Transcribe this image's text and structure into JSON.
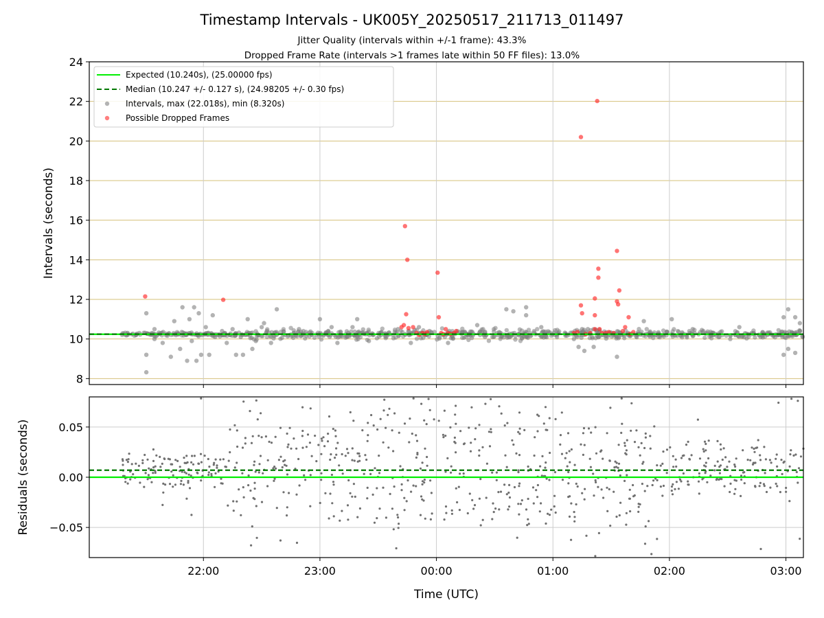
{
  "title": "Timestamp Intervals - UK005Y_20250517_211713_011497",
  "subtitle_line1": "Jitter Quality (intervals within +/-1 frame): 43.3%",
  "subtitle_line2": "Dropped Frame Rate (intervals >1 frames late within 50 FF files): 13.0%",
  "colors": {
    "expected": "#00ee00",
    "median": "#007700",
    "intervals": "#808080",
    "dropped": "#ff2a2a",
    "hgrid_top": "#d4c07a",
    "grid": "#cccccc"
  },
  "chart_data": [
    {
      "type": "scatter",
      "panel": "intervals",
      "ylabel": "Intervals (seconds)",
      "ylim": [
        7.7,
        24
      ],
      "yticks": [
        8,
        10,
        12,
        14,
        16,
        18,
        20,
        22,
        24
      ],
      "ytick_labels": [
        "8",
        "10",
        "12",
        "14",
        "16",
        "18",
        "20",
        "22",
        "24"
      ],
      "xlim_hours": [
        -2.98,
        3.15
      ],
      "xaxis_note": "hours relative to 00:00 UTC",
      "expected_value": 10.24,
      "median_value": 10.247,
      "legend": {
        "placement": "top-left",
        "entries": [
          {
            "key": "expected",
            "label": "Expected (10.240s), (25.00000 fps)"
          },
          {
            "key": "median",
            "label": "Median (10.247 +/- 0.127 s), (24.98205 +/- 0.30 fps)"
          },
          {
            "key": "intervals",
            "label": "Intervals, max (22.018s), min (8.320s)"
          },
          {
            "key": "dropped",
            "label": "Possible Dropped Frames"
          }
        ]
      },
      "band_ranges": [
        [
          -2.7,
          -1.6,
          0.0
        ],
        [
          -1.6,
          -0.6,
          0.1
        ],
        [
          -0.6,
          0.8,
          0.12
        ],
        [
          0.8,
          3.15,
          0.08
        ]
      ],
      "outliers": [
        [
          -2.49,
          8.32
        ],
        [
          -2.49,
          9.2
        ],
        [
          -2.49,
          11.3
        ],
        [
          -2.42,
          10.0
        ],
        [
          -2.42,
          10.5
        ],
        [
          -2.35,
          9.8
        ],
        [
          -2.28,
          9.1
        ],
        [
          -2.25,
          10.9
        ],
        [
          -2.2,
          9.5
        ],
        [
          -2.18,
          11.6
        ],
        [
          -2.14,
          8.9
        ],
        [
          -2.12,
          11.0
        ],
        [
          -2.1,
          9.9
        ],
        [
          -2.08,
          11.6
        ],
        [
          -2.06,
          8.9
        ],
        [
          -2.04,
          11.3
        ],
        [
          -2.02,
          9.2
        ],
        [
          -1.98,
          10.6
        ],
        [
          -1.95,
          9.2
        ],
        [
          -1.92,
          11.2
        ],
        [
          -1.9,
          10.1
        ],
        [
          -1.84,
          10.4
        ],
        [
          -1.8,
          9.8
        ],
        [
          -1.75,
          10.5
        ],
        [
          -1.72,
          9.2
        ],
        [
          -1.68,
          10.1
        ],
        [
          -1.66,
          9.2
        ],
        [
          -1.62,
          11.0
        ],
        [
          -1.58,
          9.5
        ],
        [
          -1.55,
          9.9
        ],
        [
          -1.5,
          10.6
        ],
        [
          -1.48,
          10.8
        ],
        [
          -1.42,
          9.8
        ],
        [
          -1.37,
          11.5
        ],
        [
          -1.3,
          10.2
        ],
        [
          -1.18,
          10.5
        ],
        [
          -1.0,
          11.0
        ],
        [
          -0.9,
          10.6
        ],
        [
          -0.85,
          9.8
        ],
        [
          -0.72,
          10.6
        ],
        [
          -0.68,
          11.0
        ],
        [
          -0.58,
          9.9
        ],
        [
          -0.33,
          10.5
        ],
        [
          -0.22,
          9.8
        ],
        [
          -0.15,
          10.6
        ],
        [
          -0.06,
          10.4
        ],
        [
          0.1,
          9.8
        ],
        [
          0.35,
          10.7
        ],
        [
          0.6,
          11.5
        ],
        [
          0.66,
          11.4
        ],
        [
          0.77,
          11.6
        ],
        [
          0.77,
          11.2
        ],
        [
          0.9,
          10.6
        ],
        [
          1.18,
          10.0
        ],
        [
          1.22,
          9.6
        ],
        [
          1.25,
          10.5
        ],
        [
          1.27,
          9.4
        ],
        [
          1.3,
          10.5
        ],
        [
          1.35,
          9.6
        ],
        [
          1.55,
          9.1
        ],
        [
          1.78,
          10.9
        ],
        [
          2.02,
          11.0
        ],
        [
          2.2,
          10.5
        ],
        [
          2.6,
          10.6
        ],
        [
          2.98,
          9.2
        ],
        [
          2.98,
          11.1
        ],
        [
          3.02,
          11.5
        ],
        [
          3.02,
          9.5
        ],
        [
          3.08,
          11.1
        ],
        [
          3.08,
          9.3
        ],
        [
          3.12,
          10.4
        ],
        [
          3.12,
          10.8
        ]
      ],
      "dropped_frames": [
        [
          -2.5,
          12.15
        ],
        [
          -1.83,
          11.98
        ],
        [
          -0.27,
          15.7
        ],
        [
          -0.25,
          14.0
        ],
        [
          -0.26,
          11.25
        ],
        [
          -0.3,
          10.6
        ],
        [
          -0.28,
          10.7
        ],
        [
          -0.24,
          10.55
        ],
        [
          -0.2,
          10.6
        ],
        [
          -0.17,
          10.3
        ],
        [
          -0.15,
          10.2
        ],
        [
          -0.12,
          10.3
        ],
        [
          -0.1,
          10.25
        ],
        [
          -0.08,
          10.35
        ],
        [
          0.01,
          13.35
        ],
        [
          0.02,
          11.1
        ],
        [
          0.04,
          10.3
        ],
        [
          0.06,
          10.25
        ],
        [
          0.08,
          10.5
        ],
        [
          0.1,
          10.3
        ],
        [
          0.12,
          10.25
        ],
        [
          0.15,
          10.3
        ],
        [
          0.17,
          10.4
        ],
        [
          1.24,
          20.2
        ],
        [
          1.38,
          22.02
        ],
        [
          1.24,
          11.7
        ],
        [
          1.25,
          11.3
        ],
        [
          1.28,
          10.25
        ],
        [
          1.32,
          10.3
        ],
        [
          1.36,
          10.5
        ],
        [
          1.36,
          11.2
        ],
        [
          1.36,
          12.05
        ],
        [
          1.39,
          13.55
        ],
        [
          1.39,
          13.1
        ],
        [
          1.4,
          10.5
        ],
        [
          1.42,
          10.3
        ],
        [
          1.48,
          10.35
        ],
        [
          1.52,
          10.3
        ],
        [
          1.55,
          14.45
        ],
        [
          1.55,
          11.9
        ],
        [
          1.56,
          11.75
        ],
        [
          1.57,
          12.45
        ],
        [
          1.6,
          10.4
        ],
        [
          1.62,
          10.6
        ],
        [
          1.65,
          11.1
        ],
        [
          1.66,
          10.25
        ],
        [
          1.69,
          10.35
        ],
        [
          1.18,
          10.3
        ],
        [
          1.21,
          10.35
        ],
        [
          1.45,
          10.3
        ]
      ]
    },
    {
      "type": "scatter",
      "panel": "residuals",
      "ylabel": "Residuals (seconds)",
      "xlabel": "Time (UTC)",
      "ylim": [
        -0.08,
        0.08
      ],
      "yticks": [
        0.05,
        0.0,
        -0.05
      ],
      "ytick_labels": [
        "0.05",
        "0.00",
        "−0.05"
      ],
      "xticks_hours": [
        -2,
        -1,
        0,
        1,
        2,
        3
      ],
      "xtick_labels": [
        "22:00",
        "23:00",
        "00:00",
        "01:00",
        "02:00",
        "03:00"
      ],
      "expected_value": 0.0,
      "median_value": 0.007
    }
  ]
}
